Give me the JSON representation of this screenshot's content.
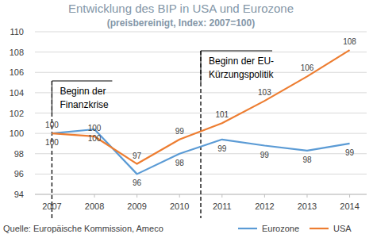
{
  "chart_data": {
    "type": "line",
    "title": "Entwicklung des BIP in USA und Eurozone",
    "subtitle": "(preisbereinigt, Index: 2007=100)",
    "x": [
      2007,
      2008,
      2009,
      2010,
      2011,
      2012,
      2013,
      2014
    ],
    "xlim": [
      2006.6,
      2014.4
    ],
    "xticks": [
      2007,
      2008,
      2009,
      2010,
      2011,
      2012,
      2013,
      2014
    ],
    "ylim": [
      94,
      110
    ],
    "yticks": [
      94,
      96,
      98,
      100,
      102,
      104,
      106,
      108,
      110
    ],
    "grid": true,
    "legend": "bottom",
    "data_labels": true,
    "series": [
      {
        "name": "Eurozone",
        "color": "#5b9bd5",
        "values": [
          100,
          100.4,
          96,
          98,
          99.4,
          98.8,
          98.3,
          99
        ],
        "value_labels": [
          "100",
          "100",
          "96",
          "98",
          "99",
          "99",
          "98",
          "99"
        ]
      },
      {
        "name": "USA",
        "color": "#ed7d31",
        "values": [
          100,
          99.7,
          97,
          99.4,
          101,
          103.2,
          105.6,
          108.2
        ],
        "value_labels": [
          "100",
          "100",
          "97",
          "99",
          "101",
          "103",
          "106",
          "108"
        ]
      }
    ],
    "annotations": [
      {
        "x": 2007,
        "lines": [
          "Beginn der",
          "Finanzkrise"
        ]
      },
      {
        "x": 2010.5,
        "lines": [
          "Beginn der EU-",
          "Kürzungspolitik"
        ]
      }
    ],
    "source": "Quelle: Europäische Kommission, Ameco"
  }
}
